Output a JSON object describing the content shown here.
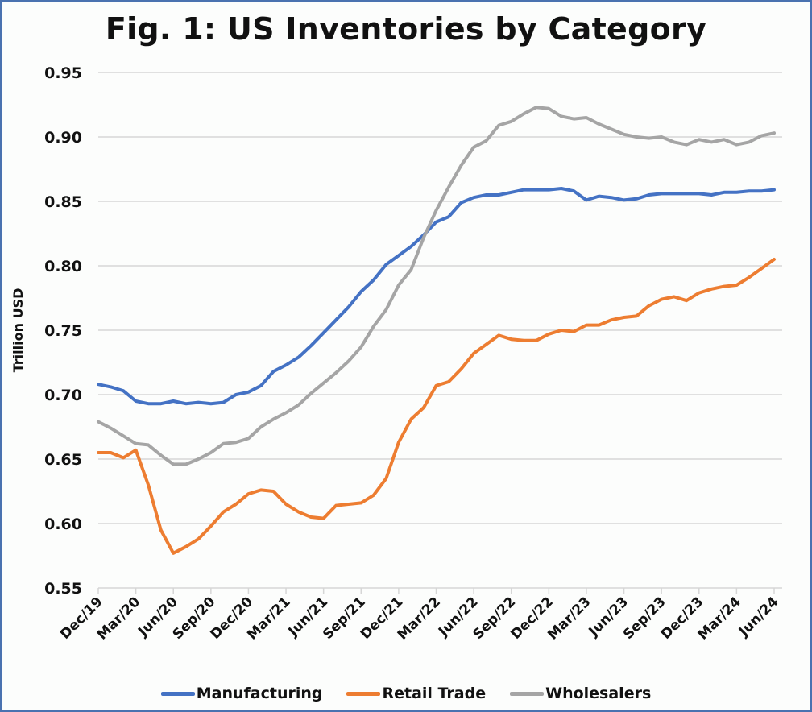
{
  "chart_data": {
    "type": "line",
    "title": "Fig. 1: US Inventories by Category",
    "xlabel": "",
    "ylabel": "Trillion USD",
    "ylim": [
      0.55,
      0.95
    ],
    "yticks": [
      "0.55",
      "0.60",
      "0.65",
      "0.70",
      "0.75",
      "0.80",
      "0.85",
      "0.90",
      "0.95"
    ],
    "xtick_labels": [
      "Dec/19",
      "Mar/20",
      "Jun/20",
      "Sep/20",
      "Dec/20",
      "Mar/21",
      "Jun/21",
      "Sep/21",
      "Dec/21",
      "Mar/22",
      "Jun/22",
      "Sep/22",
      "Dec/22",
      "Mar/23",
      "Jun/23",
      "Sep/23",
      "Dec/23",
      "Mar/24",
      "Jun/24"
    ],
    "x_note": "monthly points, Dec 2019 through Jun 2024 (55 points)",
    "grid": true,
    "legend_position": "bottom",
    "series": [
      {
        "name": "Manufacturing",
        "color": "#4472c4",
        "values": [
          0.708,
          0.706,
          0.703,
          0.695,
          0.693,
          0.693,
          0.695,
          0.693,
          0.694,
          0.693,
          0.694,
          0.7,
          0.702,
          0.707,
          0.718,
          0.723,
          0.729,
          0.738,
          0.748,
          0.758,
          0.768,
          0.78,
          0.789,
          0.801,
          0.808,
          0.815,
          0.824,
          0.834,
          0.838,
          0.849,
          0.853,
          0.855,
          0.855,
          0.857,
          0.859,
          0.859,
          0.859,
          0.86,
          0.858,
          0.851,
          0.854,
          0.853,
          0.851,
          0.852,
          0.855,
          0.856,
          0.856,
          0.856,
          0.856,
          0.855,
          0.857,
          0.857,
          0.858,
          0.858,
          0.859
        ]
      },
      {
        "name": "Retail Trade",
        "color": "#ed7d31",
        "values": [
          0.655,
          0.655,
          0.651,
          0.657,
          0.63,
          0.595,
          0.577,
          0.582,
          0.588,
          0.598,
          0.609,
          0.615,
          0.623,
          0.626,
          0.625,
          0.615,
          0.609,
          0.605,
          0.604,
          0.614,
          0.615,
          0.616,
          0.622,
          0.635,
          0.663,
          0.681,
          0.69,
          0.707,
          0.71,
          0.72,
          0.732,
          0.739,
          0.746,
          0.743,
          0.742,
          0.742,
          0.747,
          0.75,
          0.749,
          0.754,
          0.754,
          0.758,
          0.76,
          0.761,
          0.769,
          0.774,
          0.776,
          0.773,
          0.779,
          0.782,
          0.784,
          0.785,
          0.791,
          0.798,
          0.805
        ]
      },
      {
        "name": "Wholesalers",
        "color": "#a5a5a5",
        "values": [
          0.679,
          0.674,
          0.668,
          0.662,
          0.661,
          0.653,
          0.646,
          0.646,
          0.65,
          0.655,
          0.662,
          0.663,
          0.666,
          0.675,
          0.681,
          0.686,
          0.692,
          0.701,
          0.709,
          0.717,
          0.726,
          0.737,
          0.753,
          0.766,
          0.785,
          0.797,
          0.822,
          0.843,
          0.861,
          0.878,
          0.892,
          0.897,
          0.909,
          0.912,
          0.918,
          0.923,
          0.922,
          0.916,
          0.914,
          0.915,
          0.91,
          0.906,
          0.902,
          0.9,
          0.899,
          0.9,
          0.896,
          0.894,
          0.898,
          0.896,
          0.898,
          0.894,
          0.896,
          0.901,
          0.903
        ]
      }
    ]
  }
}
